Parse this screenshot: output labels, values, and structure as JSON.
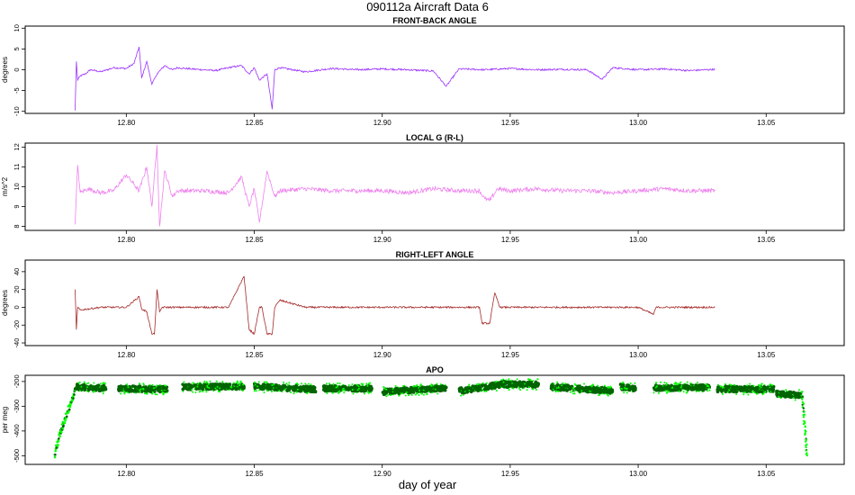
{
  "figure": {
    "title": "090112a    Aircraft Data 6",
    "xlabel": "day of year"
  },
  "chart_data": [
    {
      "type": "line",
      "title": "FRONT-BACK ANGLE",
      "ylabel": "degrees",
      "color": "#9b30ff",
      "xlim": [
        12.7605,
        13.0805
      ],
      "ylim": [
        -10.5,
        10.5
      ],
      "xticks": [
        12.8,
        12.85,
        12.9,
        12.95,
        13.0,
        13.05
      ],
      "xtick_labels": [
        "12.80",
        "12.85",
        "12.90",
        "12.95",
        "13.00",
        "13.05"
      ],
      "yticks": [
        -10,
        -5,
        0,
        5,
        10
      ],
      "ytick_labels": [
        "-10",
        "-5",
        "0",
        "5",
        "10"
      ],
      "series": [
        {
          "x": [
            12.78,
            12.7805,
            12.781,
            12.782,
            12.784,
            12.786,
            12.79,
            12.795,
            12.8,
            12.803,
            12.805,
            12.806,
            12.808,
            12.81,
            12.812,
            12.815,
            12.818,
            12.82,
            12.825,
            12.83,
            12.835,
            12.84,
            12.845,
            12.848,
            12.85,
            12.852,
            12.855,
            12.857,
            12.858,
            12.86,
            12.865,
            12.87,
            12.88,
            12.89,
            12.9,
            12.91,
            12.92,
            12.925,
            12.93,
            12.94,
            12.95,
            12.96,
            12.97,
            12.98,
            12.986,
            12.99,
            13.0,
            13.01,
            13.02,
            13.03
          ],
          "y": [
            -9.8,
            2.0,
            -2.5,
            -1.5,
            -1.0,
            0.0,
            -0.5,
            0.5,
            0.3,
            1.5,
            5.5,
            -2.0,
            2.0,
            -3.5,
            -1.0,
            1.0,
            0.0,
            0.5,
            0.2,
            0.0,
            -0.2,
            0.5,
            1.0,
            -1.0,
            0.5,
            -2.5,
            -1.0,
            -9.5,
            0.0,
            0.5,
            0.0,
            -0.5,
            0.3,
            0.0,
            0.2,
            0.0,
            -0.3,
            -4.0,
            0.2,
            0.0,
            0.3,
            0.0,
            0.1,
            0.0,
            -2.3,
            0.5,
            0.0,
            0.2,
            -0.2,
            0.1
          ]
        }
      ]
    },
    {
      "type": "line",
      "title": "LOCAL G (R-L)",
      "ylabel": "m/s^2",
      "color": "#ee82ee",
      "xlim": [
        12.7605,
        13.0805
      ],
      "ylim": [
        7.8,
        12.2
      ],
      "xticks": [
        12.8,
        12.85,
        12.9,
        12.95,
        13.0,
        13.05
      ],
      "xtick_labels": [
        "12.80",
        "12.85",
        "12.90",
        "12.95",
        "13.00",
        "13.05"
      ],
      "yticks": [
        8,
        9,
        10,
        11,
        12
      ],
      "ytick_labels": [
        "8",
        "9",
        "10",
        "11",
        "12"
      ],
      "series": [
        {
          "x": [
            12.78,
            12.781,
            12.782,
            12.785,
            12.79,
            12.795,
            12.8,
            12.805,
            12.808,
            12.81,
            12.812,
            12.813,
            12.815,
            12.818,
            12.82,
            12.83,
            12.84,
            12.845,
            12.848,
            12.85,
            12.852,
            12.855,
            12.858,
            12.86,
            12.87,
            12.88,
            12.89,
            12.9,
            12.91,
            12.92,
            12.93,
            12.938,
            12.94,
            12.942,
            12.945,
            12.95,
            12.96,
            12.97,
            12.98,
            12.99,
            13.0,
            13.01,
            13.02,
            13.03
          ],
          "y": [
            8.1,
            11.1,
            9.7,
            9.9,
            9.7,
            9.8,
            10.6,
            9.8,
            11.0,
            9.0,
            12.1,
            8.0,
            10.8,
            9.5,
            9.8,
            9.8,
            9.7,
            10.5,
            9.0,
            9.9,
            8.2,
            10.8,
            9.5,
            9.8,
            9.9,
            9.8,
            9.8,
            9.8,
            9.7,
            9.9,
            9.8,
            9.8,
            9.4,
            9.3,
            9.9,
            9.8,
            9.9,
            9.8,
            9.8,
            9.7,
            9.8,
            9.9,
            9.8,
            9.8
          ]
        }
      ]
    },
    {
      "type": "line",
      "title": "RIGHT-LEFT ANGLE",
      "ylabel": "degrees",
      "color": "#a52a2a",
      "xlim": [
        12.7605,
        13.0805
      ],
      "ylim": [
        -43,
        53
      ],
      "xticks": [
        12.8,
        12.85,
        12.9,
        12.95,
        13.0,
        13.05
      ],
      "xtick_labels": [
        "12.80",
        "12.85",
        "12.90",
        "12.95",
        "13.00",
        "13.05"
      ],
      "yticks": [
        -40,
        -20,
        0,
        20,
        40
      ],
      "ytick_labels": [
        "-40",
        "-20",
        "0",
        "20",
        "40"
      ],
      "series": [
        {
          "x": [
            12.78,
            12.7805,
            12.781,
            12.782,
            12.79,
            12.8,
            12.805,
            12.806,
            12.808,
            12.81,
            12.811,
            12.812,
            12.813,
            12.814,
            12.82,
            12.83,
            12.84,
            12.846,
            12.848,
            12.85,
            12.852,
            12.853,
            12.855,
            12.857,
            12.858,
            12.86,
            12.87,
            12.9,
            12.93,
            12.938,
            12.939,
            12.942,
            12.943,
            12.944,
            12.946,
            12.96,
            12.98,
            13.0,
            13.006,
            13.007,
            13.02,
            13.03
          ],
          "y": [
            20,
            -25,
            0,
            -3,
            0,
            0,
            12,
            -2,
            -5,
            -30,
            -30,
            20,
            -5,
            0,
            0,
            0,
            0,
            35,
            -25,
            -30,
            0,
            0,
            -30,
            -30,
            0,
            8,
            0,
            0,
            0,
            0,
            -18,
            -18,
            0,
            16,
            0,
            0,
            0,
            0,
            -8,
            0,
            0,
            0
          ]
        }
      ]
    },
    {
      "type": "scatter",
      "title": "APO",
      "ylabel": "per meg",
      "colors": {
        "dark": "#006400",
        "light": "#00ff00"
      },
      "xlim": [
        12.7605,
        13.0805
      ],
      "ylim": [
        -535,
        -175
      ],
      "xticks": [
        12.8,
        12.85,
        12.9,
        12.95,
        13.0,
        13.05
      ],
      "xtick_labels": [
        "12.80",
        "12.85",
        "12.90",
        "12.95",
        "13.00",
        "13.05"
      ],
      "yticks": [
        -500,
        -400,
        -300,
        -200
      ],
      "ytick_labels": [
        "-500",
        "-400",
        "-300",
        "-200"
      ],
      "climb_start": {
        "x": [
          12.772,
          12.78
        ],
        "y": [
          -505,
          -240
        ]
      },
      "segments": [
        {
          "x": [
            12.78,
            12.792
          ],
          "y": [
            -222,
            -228
          ]
        },
        {
          "x": [
            12.797,
            12.816
          ],
          "y": [
            -228,
            -232
          ]
        },
        {
          "x": [
            12.822,
            12.846
          ],
          "y": [
            -222,
            -220
          ]
        },
        {
          "x": [
            12.85,
            12.874
          ],
          "y": [
            -220,
            -232
          ]
        },
        {
          "x": [
            12.877,
            12.896
          ],
          "y": [
            -228,
            -228
          ]
        },
        {
          "x": [
            12.9,
            12.925
          ],
          "y": [
            -242,
            -226
          ]
        },
        {
          "x": [
            12.93,
            12.948
          ],
          "y": [
            -238,
            -210
          ]
        },
        {
          "x": [
            12.948,
            12.961
          ],
          "y": [
            -212,
            -212
          ]
        },
        {
          "x": [
            12.966,
            12.99
          ],
          "y": [
            -222,
            -238
          ]
        },
        {
          "x": [
            12.993,
            12.999
          ],
          "y": [
            -222,
            -228
          ]
        },
        {
          "x": [
            13.006,
            13.028
          ],
          "y": [
            -226,
            -224
          ]
        },
        {
          "x": [
            13.031,
            13.053
          ],
          "y": [
            -230,
            -232
          ]
        },
        {
          "x": [
            13.054,
            13.064
          ],
          "y": [
            -250,
            -255
          ]
        }
      ],
      "descent_end": {
        "x": [
          13.064,
          13.066
        ],
        "y": [
          -240,
          -500
        ]
      }
    }
  ]
}
